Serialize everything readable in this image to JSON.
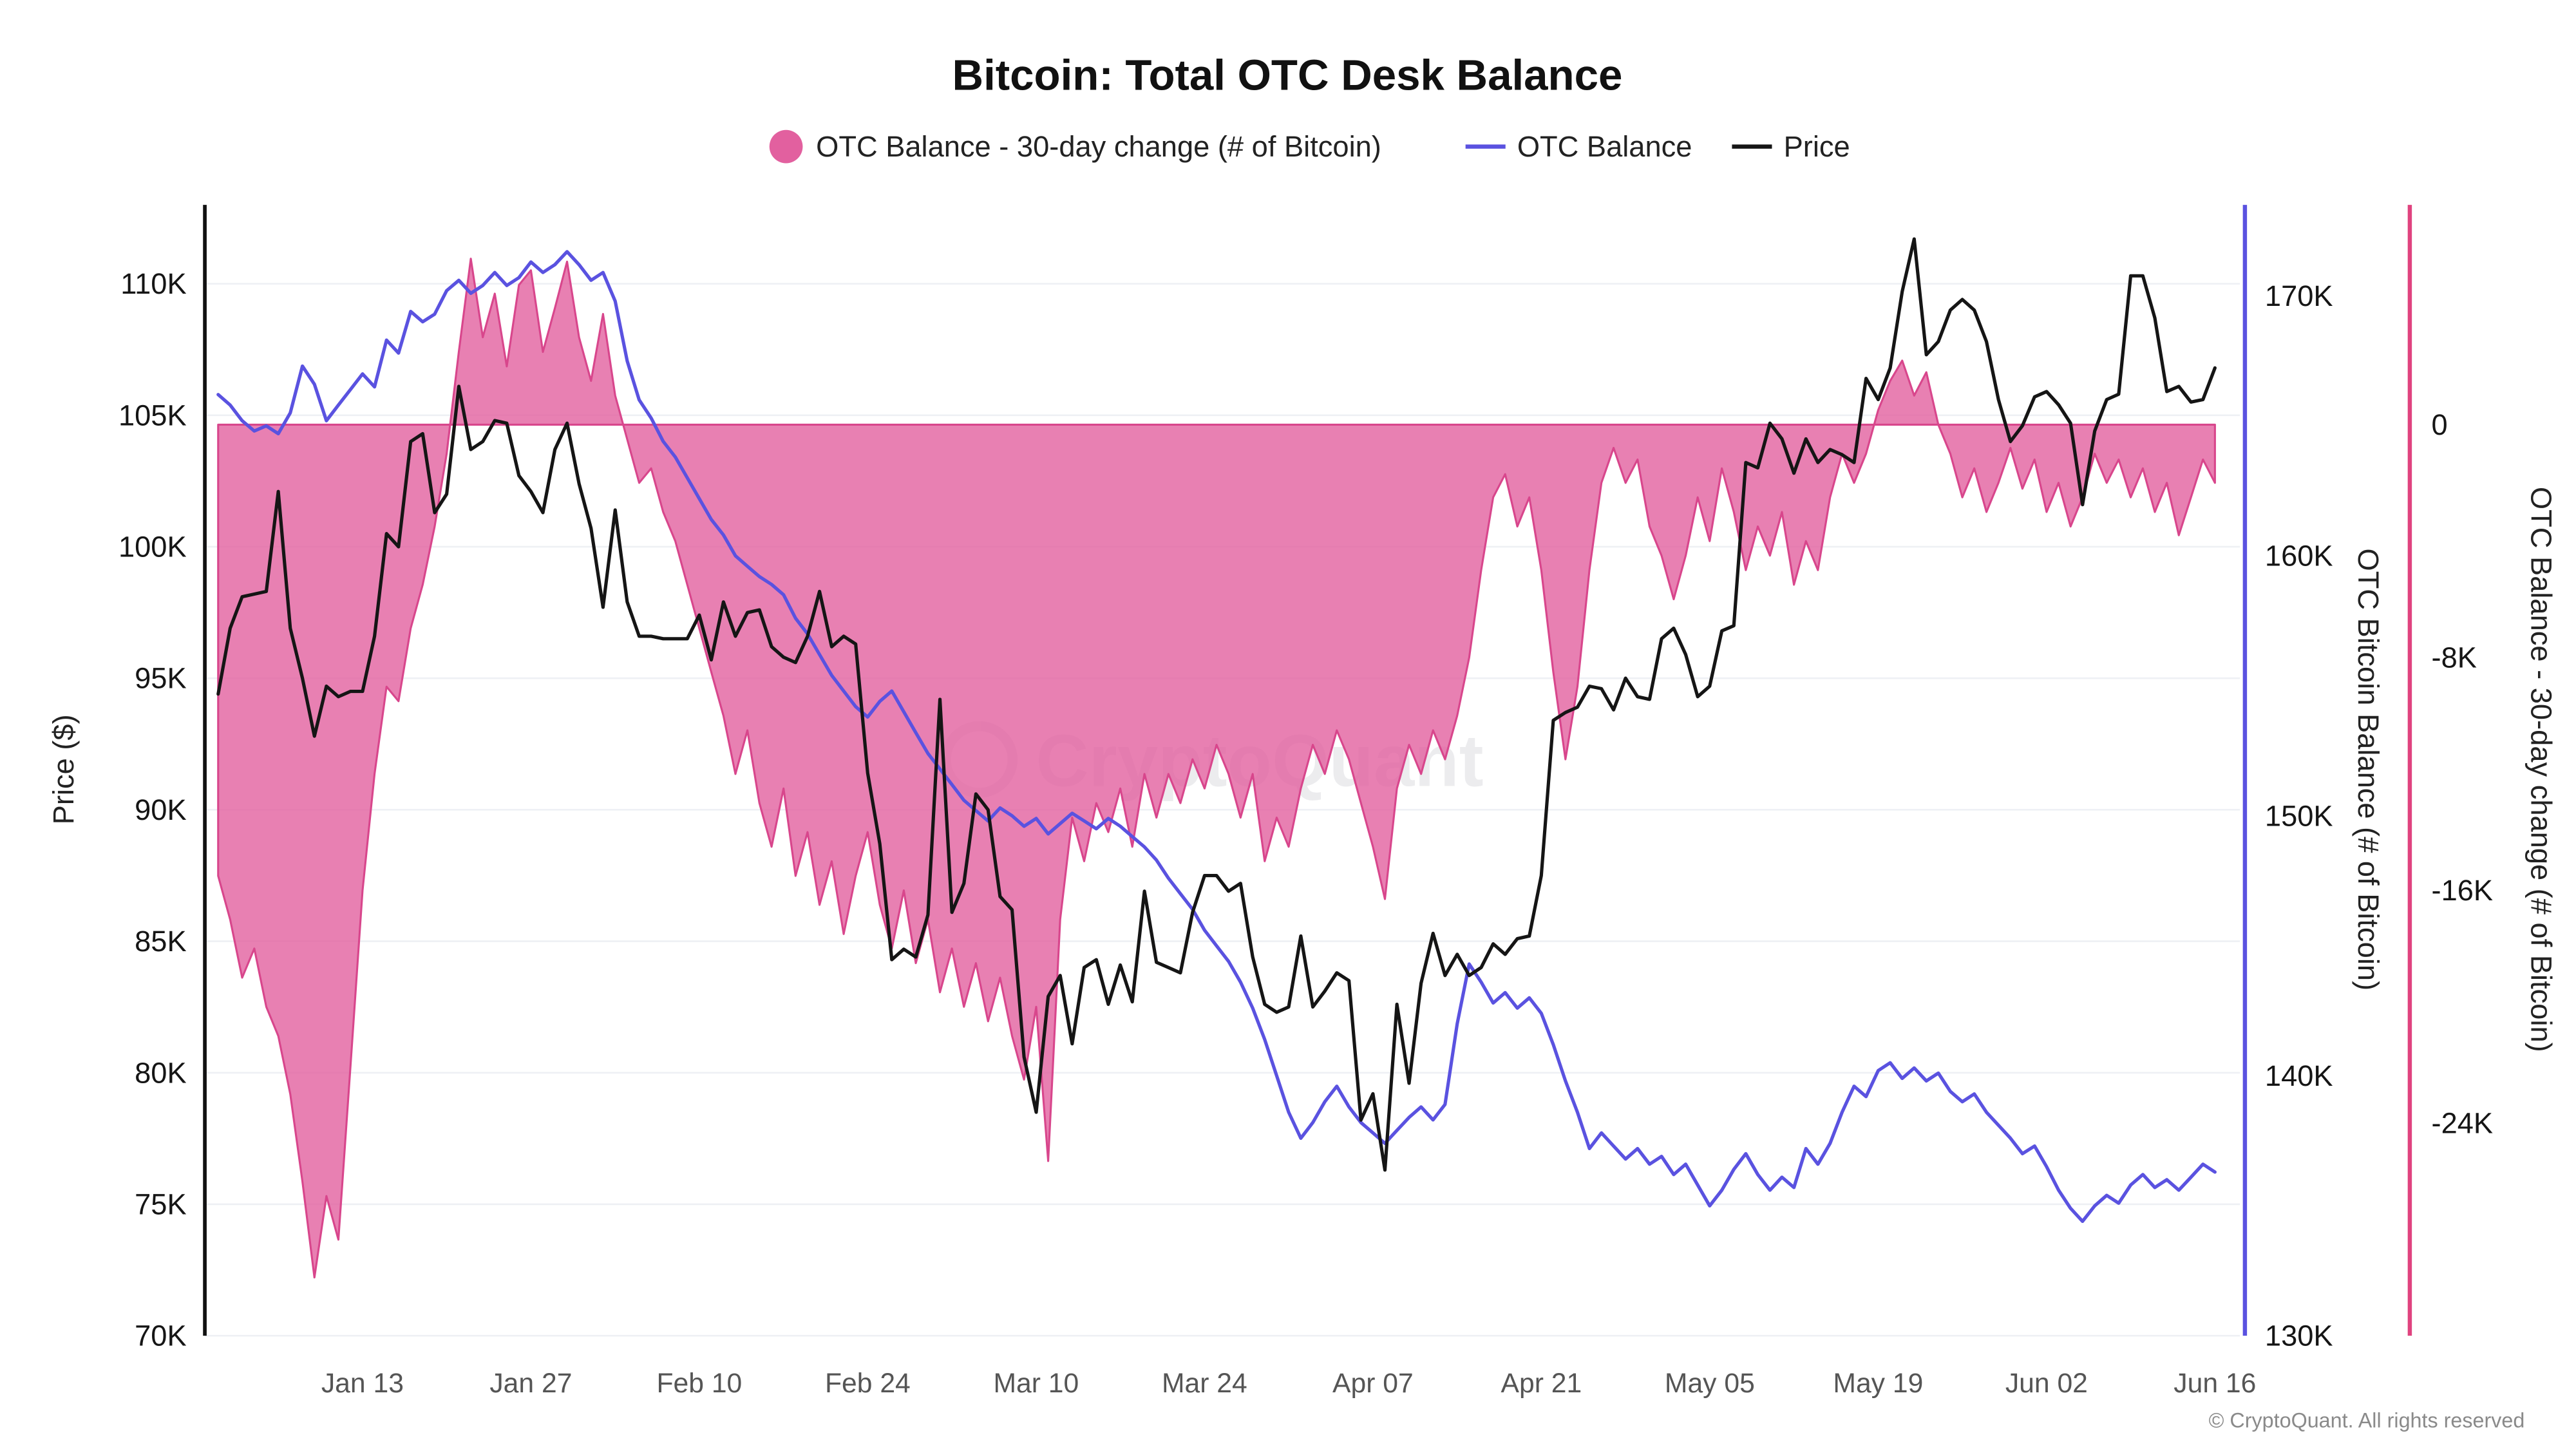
{
  "page": {
    "watermark": "CryptoQuant",
    "copyright": "© CryptoQuant. All rights reserved"
  },
  "chart_data": {
    "type": "line+area",
    "title": "Bitcoin: Total OTC Desk Balance",
    "legend": [
      {
        "label": "OTC Balance - 30-day change (# of Bitcoin)",
        "type": "area",
        "color": "#e2609f"
      },
      {
        "label": "OTC Balance",
        "type": "line",
        "color": "#5a52e0"
      },
      {
        "label": "Price",
        "type": "line",
        "color": "#151515"
      }
    ],
    "x_axis": {
      "ticks": [
        {
          "label": "Jan 13",
          "day": 12
        },
        {
          "label": "Jan 27",
          "day": 26
        },
        {
          "label": "Feb 10",
          "day": 40
        },
        {
          "label": "Feb 24",
          "day": 54
        },
        {
          "label": "Mar 10",
          "day": 68
        },
        {
          "label": "Mar 24",
          "day": 82
        },
        {
          "label": "Apr 07",
          "day": 96
        },
        {
          "label": "Apr 21",
          "day": 110
        },
        {
          "label": "May 05",
          "day": 124
        },
        {
          "label": "May 19",
          "day": 138
        },
        {
          "label": "Jun 02",
          "day": 152
        },
        {
          "label": "Jun 16",
          "day": 166
        }
      ]
    },
    "y_axes": {
      "price": {
        "title": "Price ($)",
        "side": "left",
        "min_k": 70,
        "max_k": 113,
        "ticks": [
          {
            "label": "70K",
            "v": 70
          },
          {
            "label": "75K",
            "v": 75
          },
          {
            "label": "80K",
            "v": 80
          },
          {
            "label": "85K",
            "v": 85
          },
          {
            "label": "90K",
            "v": 90
          },
          {
            "label": "95K",
            "v": 95
          },
          {
            "label": "100K",
            "v": 100
          },
          {
            "label": "105K",
            "v": 105
          },
          {
            "label": "110K",
            "v": 110
          }
        ]
      },
      "balance": {
        "title": "OTC Bitcoin Balance (# of Bitcoin)",
        "side": "right",
        "min_k": 130,
        "max_k": 173.5,
        "ticks": [
          {
            "label": "130K",
            "v": 130
          },
          {
            "label": "140K",
            "v": 140
          },
          {
            "label": "150K",
            "v": 150
          },
          {
            "label": "160K",
            "v": 160
          },
          {
            "label": "170K",
            "v": 170
          }
        ]
      },
      "change": {
        "title": "OTC Balance - 30-day change (# of Bitcoin)",
        "side": "far-right",
        "min_k": -31.3,
        "max_k": 7.55,
        "ticks": [
          {
            "label": "0",
            "v": 0
          },
          {
            "label": "-8K",
            "v": -8
          },
          {
            "label": "-16K",
            "v": -16
          },
          {
            "label": "-24K",
            "v": -24
          }
        ]
      }
    },
    "series": [
      {
        "name": "OTC Balance - 30-day change (# of Bitcoin)",
        "type": "area",
        "axis": "change",
        "color": "#e2609f",
        "edge": "#d8468c",
        "values_k": [
          -15.5,
          -17,
          -19,
          -18,
          -20,
          -21,
          -23,
          -26,
          -29.3,
          -26.5,
          -28,
          -22,
          -16,
          -12,
          -9,
          -9.5,
          -7,
          -5.5,
          -3.5,
          -1,
          2.5,
          5.7,
          3,
          4.5,
          2,
          4.8,
          5.3,
          2.5,
          4,
          5.6,
          3,
          1.5,
          3.8,
          1,
          -0.5,
          -2,
          -1.5,
          -3,
          -4,
          -5.5,
          -7,
          -8.5,
          -10,
          -12,
          -10.5,
          -13,
          -14.5,
          -12.5,
          -15.5,
          -14,
          -16.5,
          -15,
          -17.5,
          -15.5,
          -14,
          -16.5,
          -18,
          -16,
          -18.5,
          -17,
          -19.5,
          -18,
          -20,
          -18.5,
          -20.5,
          -19,
          -21,
          -22.5,
          -20,
          -25.3,
          -17,
          -13.5,
          -15,
          -13,
          -14,
          -12.5,
          -14.5,
          -12,
          -13.5,
          -12,
          -13,
          -11.5,
          -12.5,
          -11,
          -12,
          -13.5,
          -12,
          -15,
          -13.5,
          -14.5,
          -12.5,
          -11,
          -12,
          -10.5,
          -11.5,
          -13,
          -14.5,
          -16.3,
          -12.5,
          -11,
          -12,
          -10.5,
          -11.5,
          -10,
          -8,
          -5,
          -2.5,
          -1.7,
          -3.5,
          -2.5,
          -5,
          -8.5,
          -11.5,
          -9,
          -5,
          -2,
          -0.8,
          -2,
          -1.2,
          -3.5,
          -4.5,
          -6,
          -4.5,
          -2.5,
          -4,
          -1.5,
          -3,
          -5,
          -3.5,
          -4.5,
          -3,
          -5.5,
          -4,
          -5,
          -2.5,
          -1,
          -2,
          -1,
          0.5,
          1.5,
          2.2,
          1,
          1.8,
          0,
          -1,
          -2.5,
          -1.5,
          -3,
          -2,
          -0.8,
          -2.2,
          -1.2,
          -3,
          -2,
          -3.5,
          -2.5,
          -1,
          -2,
          -1.2,
          -2.5,
          -1.5,
          -3,
          -2,
          -3.8,
          -2.5,
          -1.2,
          -2
        ]
      },
      {
        "name": "OTC Balance",
        "type": "line",
        "axis": "balance",
        "color": "#5a52e0",
        "width": 2,
        "values_k": [
          166.2,
          165.8,
          165.2,
          164.8,
          165.0,
          164.7,
          165.5,
          167.3,
          166.6,
          165.2,
          165.8,
          166.4,
          167.0,
          166.5,
          168.3,
          167.8,
          169.4,
          169.0,
          169.3,
          170.2,
          170.6,
          170.1,
          170.4,
          170.9,
          170.4,
          170.7,
          171.3,
          170.9,
          171.2,
          171.7,
          171.2,
          170.6,
          170.9,
          169.8,
          167.5,
          166.0,
          165.3,
          164.4,
          163.8,
          163.0,
          162.2,
          161.4,
          160.8,
          160.0,
          159.6,
          159.2,
          158.9,
          158.5,
          157.6,
          157.0,
          156.2,
          155.4,
          154.8,
          154.2,
          153.8,
          154.4,
          154.8,
          154.0,
          153.2,
          152.4,
          151.8,
          151.2,
          150.6,
          150.2,
          149.8,
          150.3,
          150.0,
          149.6,
          149.9,
          149.3,
          149.7,
          150.1,
          149.8,
          149.5,
          149.9,
          149.6,
          149.2,
          148.8,
          148.3,
          147.6,
          147.0,
          146.4,
          145.6,
          145.0,
          144.4,
          143.6,
          142.6,
          141.4,
          140.0,
          138.6,
          137.6,
          138.2,
          139.0,
          139.6,
          138.8,
          138.2,
          137.8,
          137.4,
          137.9,
          138.4,
          138.8,
          138.3,
          138.9,
          142.0,
          144.3,
          143.6,
          142.8,
          143.2,
          142.6,
          143.0,
          142.4,
          141.2,
          139.8,
          138.6,
          137.2,
          137.8,
          137.3,
          136.8,
          137.2,
          136.6,
          136.9,
          136.2,
          136.6,
          135.8,
          135.0,
          135.6,
          136.4,
          137.0,
          136.2,
          135.6,
          136.1,
          135.7,
          137.2,
          136.6,
          137.4,
          138.6,
          139.6,
          139.2,
          140.2,
          140.5,
          139.9,
          140.3,
          139.8,
          140.1,
          139.4,
          139.0,
          139.3,
          138.6,
          138.1,
          137.6,
          137.0,
          137.3,
          136.5,
          135.6,
          134.9,
          134.4,
          135.0,
          135.4,
          135.1,
          135.8,
          136.2,
          135.7,
          136.0,
          135.6,
          136.1,
          136.6,
          136.3
        ]
      },
      {
        "name": "Price",
        "type": "line",
        "axis": "price",
        "color": "#151515",
        "width": 2,
        "values_k": [
          94.4,
          96.9,
          98.1,
          98.2,
          98.3,
          102.1,
          96.9,
          95.0,
          92.8,
          94.7,
          94.3,
          94.5,
          94.5,
          96.6,
          100.5,
          100.0,
          104.0,
          104.3,
          101.3,
          102.0,
          106.1,
          103.7,
          104.0,
          104.8,
          104.7,
          102.7,
          102.1,
          101.3,
          103.7,
          104.7,
          102.4,
          100.7,
          97.7,
          101.4,
          97.9,
          96.6,
          96.6,
          96.5,
          96.5,
          96.5,
          97.4,
          95.7,
          97.9,
          96.6,
          97.5,
          97.6,
          96.2,
          95.8,
          95.6,
          96.6,
          98.3,
          96.2,
          96.6,
          96.3,
          91.4,
          88.7,
          84.3,
          84.7,
          84.4,
          86.0,
          94.2,
          86.1,
          87.2,
          90.6,
          90.0,
          86.7,
          86.2,
          80.6,
          78.5,
          82.9,
          83.7,
          81.1,
          84.0,
          84.3,
          82.6,
          84.1,
          82.7,
          86.9,
          84.2,
          84.0,
          83.8,
          86.1,
          87.5,
          87.5,
          86.9,
          87.2,
          84.4,
          82.6,
          82.3,
          82.5,
          85.2,
          82.5,
          83.1,
          83.8,
          83.5,
          78.2,
          79.2,
          76.3,
          82.6,
          79.6,
          83.4,
          85.3,
          83.7,
          84.5,
          83.7,
          84.0,
          84.9,
          84.5,
          85.1,
          85.2,
          87.5,
          93.4,
          93.7,
          93.9,
          94.7,
          94.6,
          93.8,
          95.0,
          94.3,
          94.2,
          96.5,
          96.9,
          95.9,
          94.3,
          94.7,
          96.8,
          97.0,
          103.2,
          103.0,
          104.7,
          104.1,
          102.8,
          104.1,
          103.2,
          103.7,
          103.5,
          103.2,
          106.4,
          105.6,
          106.8,
          109.7,
          111.7,
          107.3,
          107.8,
          109.0,
          109.4,
          109.0,
          107.8,
          105.6,
          104.0,
          104.6,
          105.7,
          105.9,
          105.4,
          104.7,
          101.6,
          104.4,
          105.6,
          105.8,
          110.3,
          110.3,
          108.7,
          105.9,
          106.1,
          105.5,
          105.6,
          106.8
        ]
      }
    ]
  }
}
